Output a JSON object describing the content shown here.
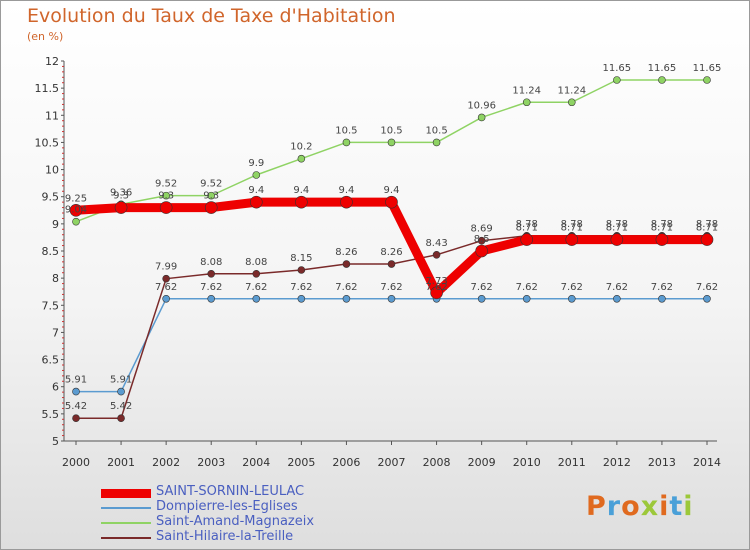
{
  "title": "Evolution du Taux de Taxe d'Habitation",
  "subtitle": "(en %)",
  "logo": {
    "text": "Proxiti",
    "colors": [
      "#e06a1f",
      "#4aa0d8",
      "#e06a1f",
      "#9cc83a",
      "#e06a1f",
      "#4aa0d8",
      "#9cc83a"
    ]
  },
  "chart_data": {
    "type": "line",
    "title": "Evolution du Taux de Taxe d'Habitation",
    "ylabel": "(en %)",
    "xlabel": "",
    "x": [
      2000,
      2001,
      2002,
      2003,
      2004,
      2005,
      2006,
      2007,
      2008,
      2009,
      2010,
      2011,
      2012,
      2013,
      2014
    ],
    "ylim": [
      5,
      12
    ],
    "yticks": [
      "5",
      "5.5",
      "6",
      "6.5",
      "7",
      "7.5",
      "8",
      "8.5",
      "9",
      "9.5",
      "10",
      "10.5",
      "11",
      "11.5",
      "12"
    ],
    "grid": false,
    "legend_position": "bottom",
    "series": [
      {
        "name": "SAINT-SORNIN-LEULAC",
        "color": "#ee0000",
        "width": 9,
        "values": [
          9.25,
          9.3,
          9.3,
          9.3,
          9.4,
          9.4,
          9.4,
          9.4,
          7.73,
          8.5,
          8.71,
          8.71,
          8.71,
          8.71,
          8.71
        ],
        "labels": [
          "9.25",
          "9.3",
          "9.3",
          "9.3",
          "9.4",
          "9.4",
          "9.4",
          "9.4",
          "7.73",
          "8.5",
          "8.71",
          "8.71",
          "8.71",
          "8.71",
          "8.71"
        ]
      },
      {
        "name": "Dompierre-les-Eglises",
        "color": "#5b9bd0",
        "width": 1.5,
        "values": [
          5.91,
          5.91,
          7.62,
          7.62,
          7.62,
          7.62,
          7.62,
          7.62,
          7.62,
          7.62,
          7.62,
          7.62,
          7.62,
          7.62,
          7.62
        ],
        "labels": [
          "5.91",
          "5.91",
          "7.62",
          "7.62",
          "7.62",
          "7.62",
          "7.62",
          "7.62",
          "7.62",
          "7.62",
          "7.62",
          "7.62",
          "7.62",
          "7.62",
          "7.62"
        ]
      },
      {
        "name": "Saint-Amand-Magnazeix",
        "color": "#8fd364",
        "width": 1.5,
        "values": [
          9.04,
          9.36,
          9.52,
          9.52,
          9.9,
          10.2,
          10.5,
          10.5,
          10.5,
          10.96,
          11.24,
          11.24,
          11.65,
          11.65,
          11.65
        ],
        "labels": [
          "9.04",
          "9.36",
          "9.52",
          "9.52",
          "9.9",
          "10.2",
          "10.5",
          "10.5",
          "10.5",
          "10.96",
          "11.24",
          "11.24",
          "11.65",
          "11.65",
          "11.65"
        ]
      },
      {
        "name": "Saint-Hilaire-la-Treille",
        "color": "#7a2a2a",
        "width": 1.5,
        "values": [
          5.42,
          5.42,
          7.99,
          8.08,
          8.08,
          8.15,
          8.26,
          8.26,
          8.43,
          8.69,
          8.78,
          8.78,
          8.78,
          8.78,
          8.78
        ],
        "labels": [
          "5.42",
          "5.42",
          "7.99",
          "8.08",
          "8.08",
          "8.15",
          "8.26",
          "8.26",
          "8.43",
          "8.69",
          "8.78",
          "8.78",
          "8.78",
          "8.78",
          "8.78"
        ]
      }
    ]
  }
}
